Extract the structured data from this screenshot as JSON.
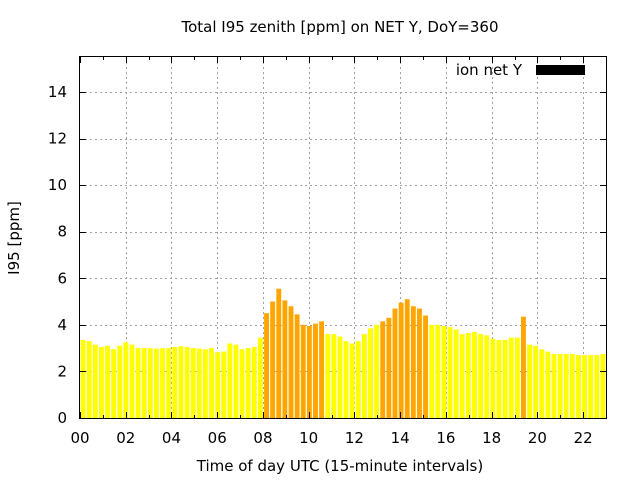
{
  "chart_data": {
    "type": "bar",
    "title": "Total I95 zenith [ppm] on NET Y, DoY=360",
    "xlabel": "Time of day UTC (15-minute intervals)",
    "ylabel": "I95 [ppm]",
    "x_tick_labels": [
      "00",
      "02",
      "04",
      "06",
      "08",
      "10",
      "12",
      "14",
      "16",
      "18",
      "20",
      "22"
    ],
    "y_tick_labels": [
      "0",
      "2",
      "4",
      "6",
      "8",
      "10",
      "12",
      "14"
    ],
    "y_ticks": [
      0,
      2,
      4,
      6,
      8,
      10,
      12,
      14
    ],
    "xlim": [
      0,
      23
    ],
    "ylim": [
      0,
      15.5
    ],
    "bar_width_hours": 0.2,
    "grid": true,
    "legend": {
      "label": "ion net Y",
      "swatch_color": "#000000",
      "position": "top-right"
    },
    "colors": {
      "low": "#ffff00",
      "high": "#ffa500",
      "grid": "#a0a0a0",
      "frame": "#000000"
    },
    "series": [
      {
        "values": [
          3.35,
          3.3,
          3.15,
          3.05,
          3.1,
          2.95,
          3.1,
          3.25,
          3.15,
          3.0,
          3.0,
          3.0,
          2.98,
          3.0,
          3.0,
          3.05,
          3.08,
          3.05,
          3.0,
          2.98,
          2.95,
          3.0,
          2.82,
          2.85,
          3.2,
          3.15,
          2.95,
          3.0,
          3.05,
          3.45,
          4.5,
          5.0,
          5.55,
          5.05,
          4.8,
          4.45,
          4.0,
          3.95,
          4.05,
          4.15,
          3.6,
          3.6,
          3.5,
          3.3,
          3.2,
          3.3,
          3.6,
          3.85,
          4.0,
          4.15,
          4.3,
          4.7,
          4.95,
          5.1,
          4.8,
          4.7,
          4.4,
          4.0,
          4.0,
          3.95,
          3.9,
          3.8,
          3.6,
          3.65,
          3.7,
          3.6,
          3.55,
          3.4,
          3.35,
          3.35,
          3.45,
          3.45,
          4.35,
          3.15,
          3.1,
          2.95,
          2.85,
          2.75,
          2.75,
          2.75,
          2.75,
          2.7,
          2.7,
          2.7,
          2.7,
          2.75
        ],
        "levels": [
          "low",
          "low",
          "low",
          "low",
          "low",
          "low",
          "low",
          "low",
          "low",
          "low",
          "low",
          "low",
          "low",
          "low",
          "low",
          "low",
          "low",
          "low",
          "low",
          "low",
          "low",
          "low",
          "low",
          "low",
          "low",
          "low",
          "low",
          "low",
          "low",
          "low",
          "high",
          "high",
          "high",
          "high",
          "high",
          "high",
          "high",
          "high",
          "high",
          "high",
          "low",
          "low",
          "low",
          "low",
          "low",
          "low",
          "low",
          "low",
          "low",
          "high",
          "high",
          "high",
          "high",
          "high",
          "high",
          "high",
          "high",
          "low",
          "low",
          "low",
          "low",
          "low",
          "low",
          "low",
          "low",
          "low",
          "low",
          "low",
          "low",
          "low",
          "low",
          "low",
          "high",
          "low",
          "low",
          "low",
          "low",
          "low",
          "low",
          "low",
          "low",
          "low",
          "low",
          "low",
          "low",
          "low"
        ]
      }
    ]
  }
}
